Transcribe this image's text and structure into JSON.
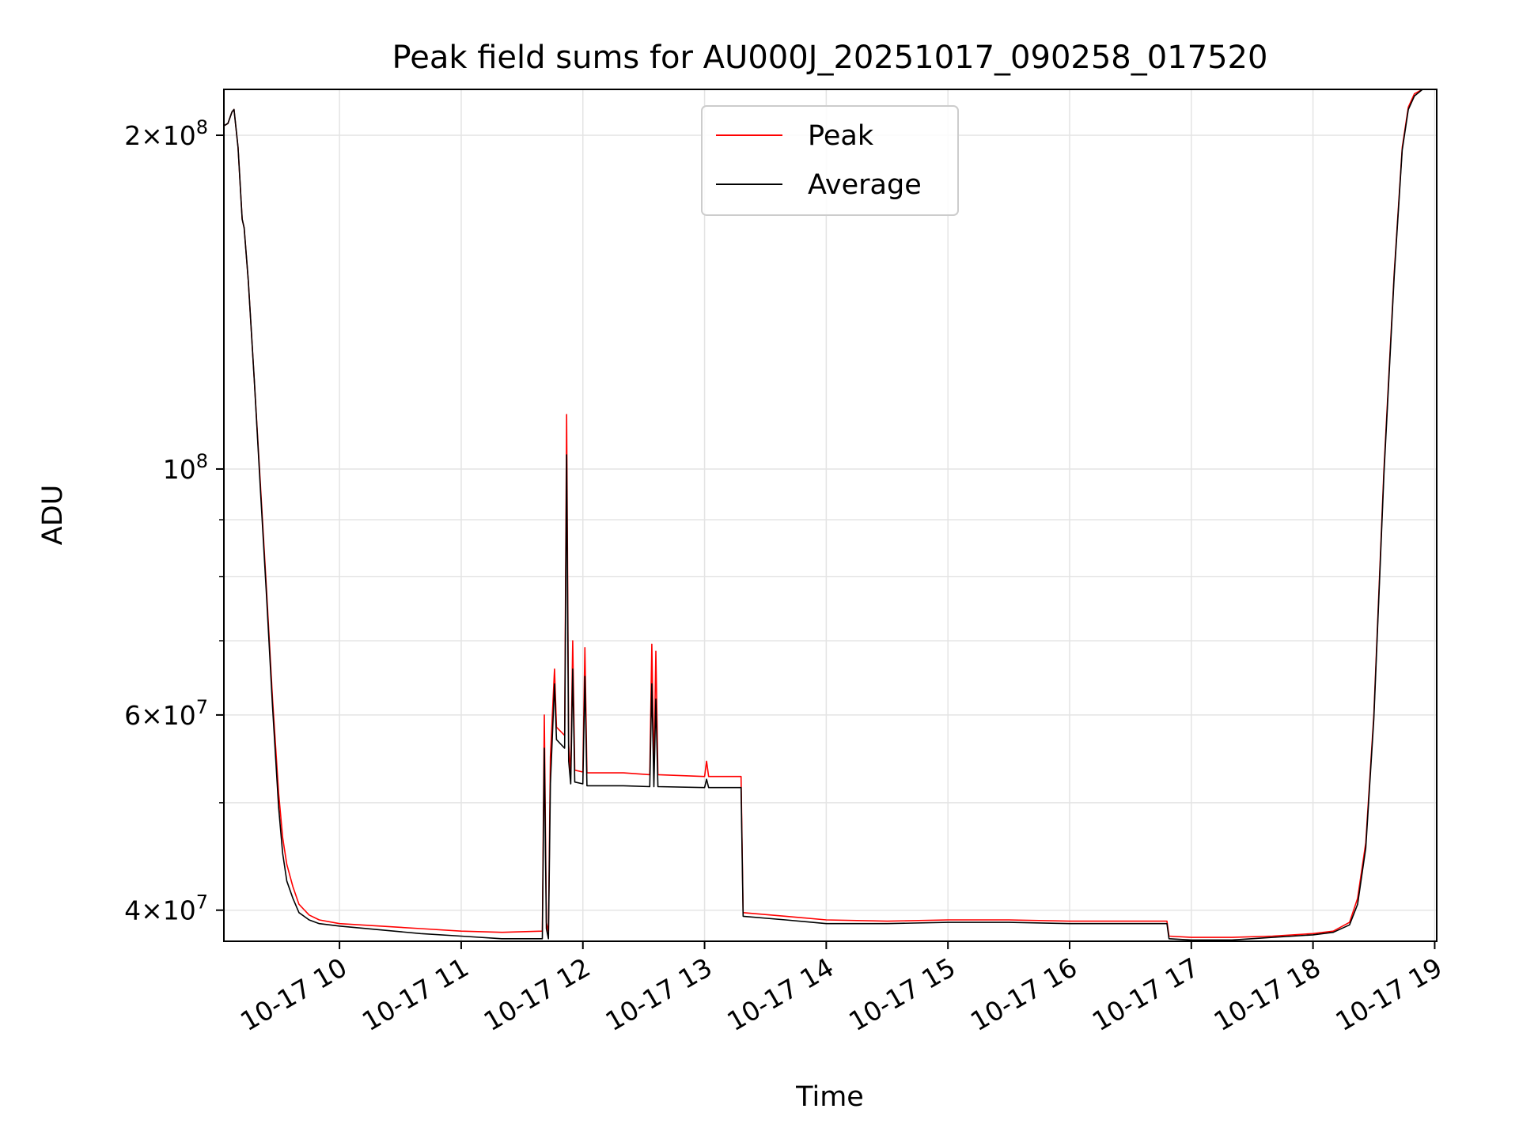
{
  "chart_data": {
    "type": "line",
    "title": "Peak field sums for AU000J_20251017_090258_017520",
    "xlabel": "Time",
    "ylabel": "ADU",
    "yscale": "log",
    "grid": true,
    "legend_position": "upper-center",
    "xlim": [
      "2025-10-17 09:03",
      "2025-10-17 19:01"
    ],
    "ylim": [
      37500000,
      220000000
    ],
    "x_ticks": [
      {
        "x": "2025-10-17 10:00",
        "label": "10-17 10"
      },
      {
        "x": "2025-10-17 11:00",
        "label": "10-17 11"
      },
      {
        "x": "2025-10-17 12:00",
        "label": "10-17 12"
      },
      {
        "x": "2025-10-17 13:00",
        "label": "10-17 13"
      },
      {
        "x": "2025-10-17 14:00",
        "label": "10-17 14"
      },
      {
        "x": "2025-10-17 15:00",
        "label": "10-17 15"
      },
      {
        "x": "2025-10-17 16:00",
        "label": "10-17 16"
      },
      {
        "x": "2025-10-17 17:00",
        "label": "10-17 17"
      },
      {
        "x": "2025-10-17 18:00",
        "label": "10-17 18"
      },
      {
        "x": "2025-10-17 19:00",
        "label": "10-17 19"
      }
    ],
    "y_major_ticks": [
      {
        "y": 40000000,
        "base": "4",
        "exp": "7"
      },
      {
        "y": 60000000,
        "base": "6",
        "exp": "7"
      },
      {
        "y": 100000000,
        "base": "",
        "exp": "8"
      },
      {
        "y": 200000000,
        "base": "2",
        "exp": "8"
      }
    ],
    "y_minor_ticks": [
      50000000,
      70000000,
      80000000,
      90000000
    ],
    "series": [
      {
        "name": "Peak",
        "color": "#ff0000",
        "points": [
          [
            "2025-10-17 09:03",
            204000000
          ],
          [
            "2025-10-17 09:05",
            205000000
          ],
          [
            "2025-10-17 09:07",
            210000000
          ],
          [
            "2025-10-17 09:08",
            211000000
          ],
          [
            "2025-10-17 09:10",
            195000000
          ],
          [
            "2025-10-17 09:12",
            168000000
          ],
          [
            "2025-10-17 09:13",
            165000000
          ],
          [
            "2025-10-17 09:15",
            148000000
          ],
          [
            "2025-10-17 09:18",
            120000000
          ],
          [
            "2025-10-17 09:21",
            97000000
          ],
          [
            "2025-10-17 09:24",
            78000000
          ],
          [
            "2025-10-17 09:27",
            62000000
          ],
          [
            "2025-10-17 09:30",
            51000000
          ],
          [
            "2025-10-17 09:32",
            46500000
          ],
          [
            "2025-10-17 09:34",
            44000000
          ],
          [
            "2025-10-17 09:37",
            42000000
          ],
          [
            "2025-10-17 09:40",
            40500000
          ],
          [
            "2025-10-17 09:45",
            39600000
          ],
          [
            "2025-10-17 09:50",
            39200000
          ],
          [
            "2025-10-17 10:00",
            38900000
          ],
          [
            "2025-10-17 10:20",
            38700000
          ],
          [
            "2025-10-17 10:40",
            38500000
          ],
          [
            "2025-10-17 11:00",
            38300000
          ],
          [
            "2025-10-17 11:20",
            38200000
          ],
          [
            "2025-10-17 11:40",
            38300000
          ],
          [
            "2025-10-17 11:41",
            60000000
          ],
          [
            "2025-10-17 11:42",
            39000000
          ],
          [
            "2025-10-17 11:43",
            38200000
          ],
          [
            "2025-10-17 11:44",
            55000000
          ],
          [
            "2025-10-17 11:46",
            66000000
          ],
          [
            "2025-10-17 11:47",
            58500000
          ],
          [
            "2025-10-17 11:49",
            58000000
          ],
          [
            "2025-10-17 11:51",
            57500000
          ],
          [
            "2025-10-17 11:52",
            112000000
          ],
          [
            "2025-10-17 11:53",
            56500000
          ],
          [
            "2025-10-17 11:54",
            53000000
          ],
          [
            "2025-10-17 11:55",
            70000000
          ],
          [
            "2025-10-17 11:56",
            53500000
          ],
          [
            "2025-10-17 12:00",
            53300000
          ],
          [
            "2025-10-17 12:01",
            69000000
          ],
          [
            "2025-10-17 12:02",
            53200000
          ],
          [
            "2025-10-17 12:20",
            53200000
          ],
          [
            "2025-10-17 12:33",
            53000000
          ],
          [
            "2025-10-17 12:34",
            69500000
          ],
          [
            "2025-10-17 12:35",
            53000000
          ],
          [
            "2025-10-17 12:36",
            68500000
          ],
          [
            "2025-10-17 12:37",
            53000000
          ],
          [
            "2025-10-17 13:00",
            52800000
          ],
          [
            "2025-10-17 13:01",
            54500000
          ],
          [
            "2025-10-17 13:02",
            52800000
          ],
          [
            "2025-10-17 13:18",
            52800000
          ],
          [
            "2025-10-17 13:19",
            39800000
          ],
          [
            "2025-10-17 13:40",
            39500000
          ],
          [
            "2025-10-17 14:00",
            39200000
          ],
          [
            "2025-10-17 14:30",
            39100000
          ],
          [
            "2025-10-17 15:00",
            39200000
          ],
          [
            "2025-10-17 15:30",
            39200000
          ],
          [
            "2025-10-17 16:00",
            39100000
          ],
          [
            "2025-10-17 16:30",
            39100000
          ],
          [
            "2025-10-17 16:48",
            39100000
          ],
          [
            "2025-10-17 16:49",
            37900000
          ],
          [
            "2025-10-17 17:00",
            37800000
          ],
          [
            "2025-10-17 17:20",
            37800000
          ],
          [
            "2025-10-17 17:40",
            37900000
          ],
          [
            "2025-10-17 18:00",
            38100000
          ],
          [
            "2025-10-17 18:10",
            38300000
          ],
          [
            "2025-10-17 18:18",
            39000000
          ],
          [
            "2025-10-17 18:22",
            41000000
          ],
          [
            "2025-10-17 18:26",
            46000000
          ],
          [
            "2025-10-17 18:30",
            60000000
          ],
          [
            "2025-10-17 18:35",
            100000000
          ],
          [
            "2025-10-17 18:40",
            150000000
          ],
          [
            "2025-10-17 18:44",
            195000000
          ],
          [
            "2025-10-17 18:47",
            212000000
          ],
          [
            "2025-10-17 18:50",
            218000000
          ],
          [
            "2025-10-17 18:54",
            220000000
          ]
        ]
      },
      {
        "name": "Average",
        "color": "#000000",
        "points": [
          [
            "2025-10-17 09:03",
            204000000
          ],
          [
            "2025-10-17 09:05",
            205000000
          ],
          [
            "2025-10-17 09:07",
            210000000
          ],
          [
            "2025-10-17 09:08",
            211000000
          ],
          [
            "2025-10-17 09:10",
            195000000
          ],
          [
            "2025-10-17 09:12",
            168000000
          ],
          [
            "2025-10-17 09:13",
            165000000
          ],
          [
            "2025-10-17 09:15",
            148000000
          ],
          [
            "2025-10-17 09:18",
            120000000
          ],
          [
            "2025-10-17 09:21",
            96000000
          ],
          [
            "2025-10-17 09:24",
            77000000
          ],
          [
            "2025-10-17 09:27",
            61000000
          ],
          [
            "2025-10-17 09:30",
            49500000
          ],
          [
            "2025-10-17 09:32",
            45000000
          ],
          [
            "2025-10-17 09:34",
            42500000
          ],
          [
            "2025-10-17 09:37",
            41000000
          ],
          [
            "2025-10-17 09:40",
            39800000
          ],
          [
            "2025-10-17 09:45",
            39200000
          ],
          [
            "2025-10-17 09:50",
            38900000
          ],
          [
            "2025-10-17 10:00",
            38700000
          ],
          [
            "2025-10-17 10:20",
            38400000
          ],
          [
            "2025-10-17 10:40",
            38100000
          ],
          [
            "2025-10-17 11:00",
            37900000
          ],
          [
            "2025-10-17 11:20",
            37700000
          ],
          [
            "2025-10-17 11:40",
            37700000
          ],
          [
            "2025-10-17 11:41",
            56000000
          ],
          [
            "2025-10-17 11:42",
            38500000
          ],
          [
            "2025-10-17 11:43",
            37700000
          ],
          [
            "2025-10-17 11:44",
            52000000
          ],
          [
            "2025-10-17 11:46",
            64000000
          ],
          [
            "2025-10-17 11:47",
            57000000
          ],
          [
            "2025-10-17 11:49",
            56500000
          ],
          [
            "2025-10-17 11:51",
            56000000
          ],
          [
            "2025-10-17 11:52",
            103000000
          ],
          [
            "2025-10-17 11:53",
            54500000
          ],
          [
            "2025-10-17 11:54",
            52000000
          ],
          [
            "2025-10-17 11:55",
            66000000
          ],
          [
            "2025-10-17 11:56",
            52200000
          ],
          [
            "2025-10-17 12:00",
            52000000
          ],
          [
            "2025-10-17 12:01",
            65000000
          ],
          [
            "2025-10-17 12:02",
            51800000
          ],
          [
            "2025-10-17 12:20",
            51800000
          ],
          [
            "2025-10-17 12:33",
            51700000
          ],
          [
            "2025-10-17 12:34",
            64000000
          ],
          [
            "2025-10-17 12:35",
            51700000
          ],
          [
            "2025-10-17 12:36",
            62000000
          ],
          [
            "2025-10-17 12:37",
            51700000
          ],
          [
            "2025-10-17 13:00",
            51600000
          ],
          [
            "2025-10-17 13:01",
            52500000
          ],
          [
            "2025-10-17 13:02",
            51600000
          ],
          [
            "2025-10-17 13:18",
            51600000
          ],
          [
            "2025-10-17 13:19",
            39500000
          ],
          [
            "2025-10-17 13:40",
            39200000
          ],
          [
            "2025-10-17 14:00",
            38900000
          ],
          [
            "2025-10-17 14:30",
            38900000
          ],
          [
            "2025-10-17 15:00",
            39000000
          ],
          [
            "2025-10-17 15:30",
            39000000
          ],
          [
            "2025-10-17 16:00",
            38900000
          ],
          [
            "2025-10-17 16:30",
            38900000
          ],
          [
            "2025-10-17 16:48",
            38900000
          ],
          [
            "2025-10-17 16:49",
            37700000
          ],
          [
            "2025-10-17 17:00",
            37600000
          ],
          [
            "2025-10-17 17:20",
            37600000
          ],
          [
            "2025-10-17 17:40",
            37800000
          ],
          [
            "2025-10-17 18:00",
            38000000
          ],
          [
            "2025-10-17 18:10",
            38200000
          ],
          [
            "2025-10-17 18:18",
            38800000
          ],
          [
            "2025-10-17 18:22",
            40500000
          ],
          [
            "2025-10-17 18:26",
            45500000
          ],
          [
            "2025-10-17 18:30",
            59500000
          ],
          [
            "2025-10-17 18:35",
            99000000
          ],
          [
            "2025-10-17 18:40",
            149000000
          ],
          [
            "2025-10-17 18:44",
            194000000
          ],
          [
            "2025-10-17 18:47",
            211000000
          ],
          [
            "2025-10-17 18:50",
            217000000
          ],
          [
            "2025-10-17 18:54",
            220000000
          ]
        ]
      }
    ]
  }
}
